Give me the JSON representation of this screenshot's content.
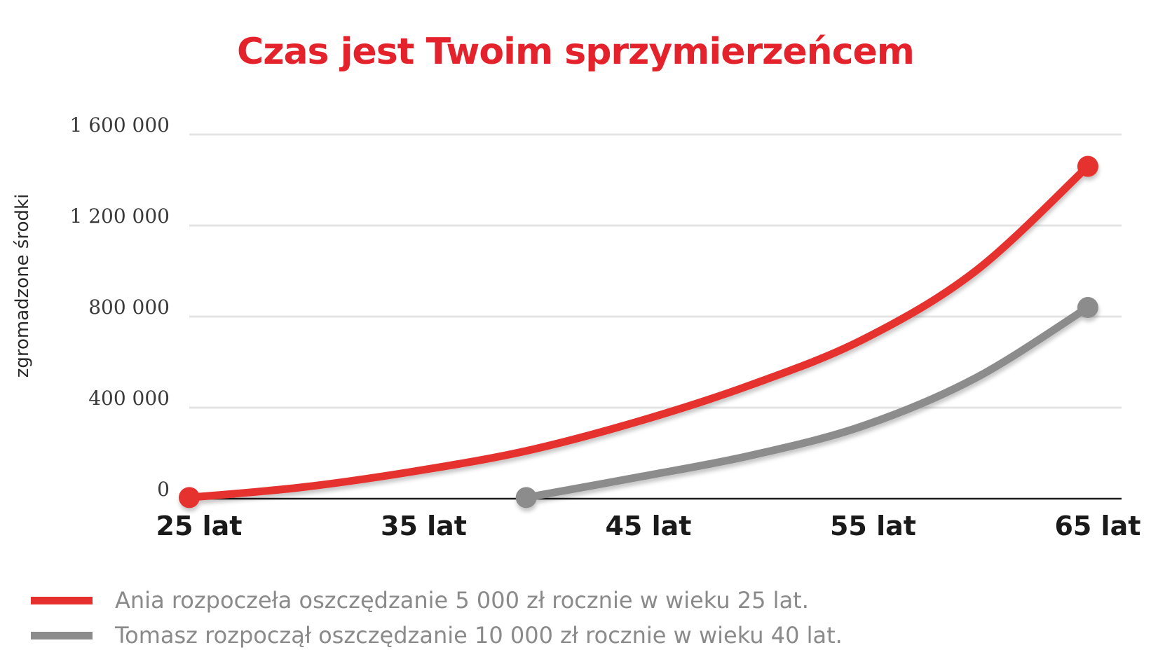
{
  "chart_data": {
    "type": "line",
    "title": "Czas jest Twoim sprzymierzeńcem",
    "xlabel": "",
    "ylabel": "zgromadzone środki",
    "x_ticks": [
      "25 lat",
      "35 lat",
      "45 lat",
      "55 lat",
      "65 lat"
    ],
    "y_ticks": [
      "0",
      "400 000",
      "800 000",
      "1 200 000",
      "1 600 000"
    ],
    "xlim": [
      25,
      66.5
    ],
    "ylim": [
      0,
      1600000
    ],
    "grid": true,
    "legend_position": "bottom-left",
    "series": [
      {
        "name": "Ania rozpoczeła oszczędzanie 5 000 zł rocznie w wieku 25 lat.",
        "color": "#e5302d",
        "x": [
          25,
          30,
          35,
          40,
          45,
          50,
          55,
          60,
          65
        ],
        "y": [
          5000,
          50000,
          120000,
          210000,
          340000,
          500000,
          700000,
          1000000,
          1460000
        ]
      },
      {
        "name": "Tomasz rozpoczął oszczędzanie 10 000 zł rocznie w wieku 40 lat.",
        "color": "#8c8c8c",
        "x": [
          40,
          45,
          50,
          55,
          60,
          65
        ],
        "y": [
          5000,
          95000,
          190000,
          320000,
          530000,
          840000
        ]
      }
    ]
  }
}
